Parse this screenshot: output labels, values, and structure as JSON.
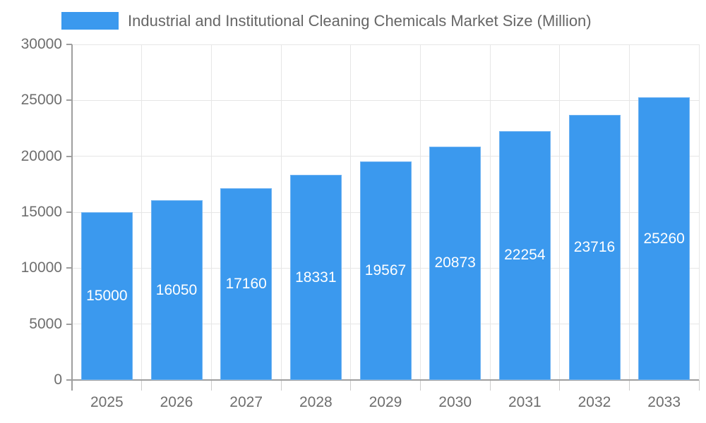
{
  "chart_data": {
    "type": "bar",
    "title": "Industrial and Institutional Cleaning Chemicals Market Size (Million)",
    "categories": [
      "2025",
      "2026",
      "2027",
      "2028",
      "2029",
      "2030",
      "2031",
      "2032",
      "2033"
    ],
    "values": [
      15000,
      16050,
      17160,
      18331,
      19567,
      20873,
      22254,
      23716,
      25260
    ],
    "data_labels": [
      "15000",
      "16050",
      "17160",
      "18331",
      "19567",
      "20873",
      "22254",
      "23716",
      "25260"
    ],
    "xlabel": "",
    "ylabel": "",
    "ylim": [
      0,
      30000
    ],
    "ytick_interval": 5000,
    "yticks": [
      "0",
      "5000",
      "10000",
      "15000",
      "20000",
      "25000",
      "30000"
    ],
    "legend_position": "top-left",
    "grid": "both",
    "colors": {
      "bar": "#3B99EE",
      "bar_edge": "#6FB3F2",
      "grid": "#e6e6e6",
      "axis": "#9e9e9e",
      "x_tick_mark": "#cccccc",
      "tick_label": "#6e6e6e",
      "title_text": "#666666",
      "data_label": "#ffffff",
      "background": "#ffffff"
    }
  }
}
